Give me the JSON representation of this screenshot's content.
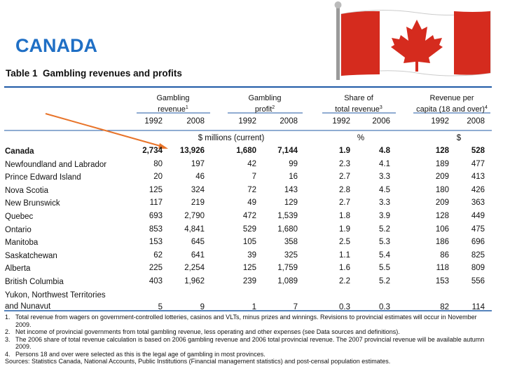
{
  "heading": "CANADA",
  "table": {
    "number": "Table 1",
    "title": "Gambling revenues and profits",
    "groups": [
      {
        "line1": "Gambling",
        "line2": "revenue",
        "note": "1"
      },
      {
        "line1": "Gambling",
        "line2": "profit",
        "note": "2"
      },
      {
        "line1": "Share of",
        "line2": "total revenue",
        "note": "3"
      },
      {
        "line1": "Revenue per",
        "line2": "capita (18 and over)",
        "note": "4"
      }
    ],
    "years": [
      "1992",
      "2008",
      "1992",
      "2008",
      "1992",
      "2006",
      "1992",
      "2008"
    ],
    "units": [
      "$ millions (current)",
      "%",
      "$"
    ],
    "rows": [
      [
        "Canada",
        "2,734",
        "13,926",
        "1,680",
        "7,144",
        "1.9",
        "4.8",
        "128",
        "528"
      ],
      [
        "Newfoundland and Labrador",
        "80",
        "197",
        "42",
        "99",
        "2.3",
        "4.1",
        "189",
        "477"
      ],
      [
        "Prince Edward Island",
        "20",
        "46",
        "7",
        "16",
        "2.7",
        "3.3",
        "209",
        "413"
      ],
      [
        "Nova Scotia",
        "125",
        "324",
        "72",
        "143",
        "2.8",
        "4.5",
        "180",
        "426"
      ],
      [
        "New Brunswick",
        "117",
        "219",
        "49",
        "129",
        "2.7",
        "3.3",
        "209",
        "363"
      ],
      [
        "Quebec",
        "693",
        "2,790",
        "472",
        "1,539",
        "1.8",
        "3.9",
        "128",
        "449"
      ],
      [
        "Ontario",
        "853",
        "4,841",
        "529",
        "1,680",
        "1.9",
        "5.2",
        "106",
        "475"
      ],
      [
        "Manitoba",
        "153",
        "645",
        "105",
        "358",
        "2.5",
        "5.3",
        "186",
        "696"
      ],
      [
        "Saskatchewan",
        "62",
        "641",
        "39",
        "325",
        "1.1",
        "5.4",
        "86",
        "825"
      ],
      [
        "Alberta",
        "225",
        "2,254",
        "125",
        "1,759",
        "1.6",
        "5.5",
        "118",
        "809"
      ],
      [
        "British Columbia",
        "403",
        "1,962",
        "239",
        "1,089",
        "2.2",
        "5.2",
        "153",
        "556"
      ],
      [
        "Yukon, Northwest Territories\nand Nunavut",
        "5",
        "9",
        "1",
        "7",
        "0.3",
        "0.3",
        "82",
        "114"
      ]
    ],
    "footnotes": [
      {
        "number": "1.",
        "text": "Total revenue from wagers on government-controlled lotteries, casinos and VLTs, minus prizes and winnings. Revisions to provincial estimates will occur in November 2009."
      },
      {
        "number": "2.",
        "text": "Net income of provincial governments from total gambling revenue, less operating and other expenses (see Data sources and definitions)."
      },
      {
        "number": "3.",
        "text": "The 2006 share of total revenue calculation is based on 2006 gambling revenue and 2006 total provincial revenue. The 2007 provincial revenue will be available autumn 2009."
      },
      {
        "number": "4.",
        "text": "Persons 18 and over were selected as this is the legal age of gambling in most provinces."
      }
    ],
    "sources": "Sources: Statistics Canada, National Accounts, Public Institutions (Financial management statistics) and post-censal population estimates."
  }
}
